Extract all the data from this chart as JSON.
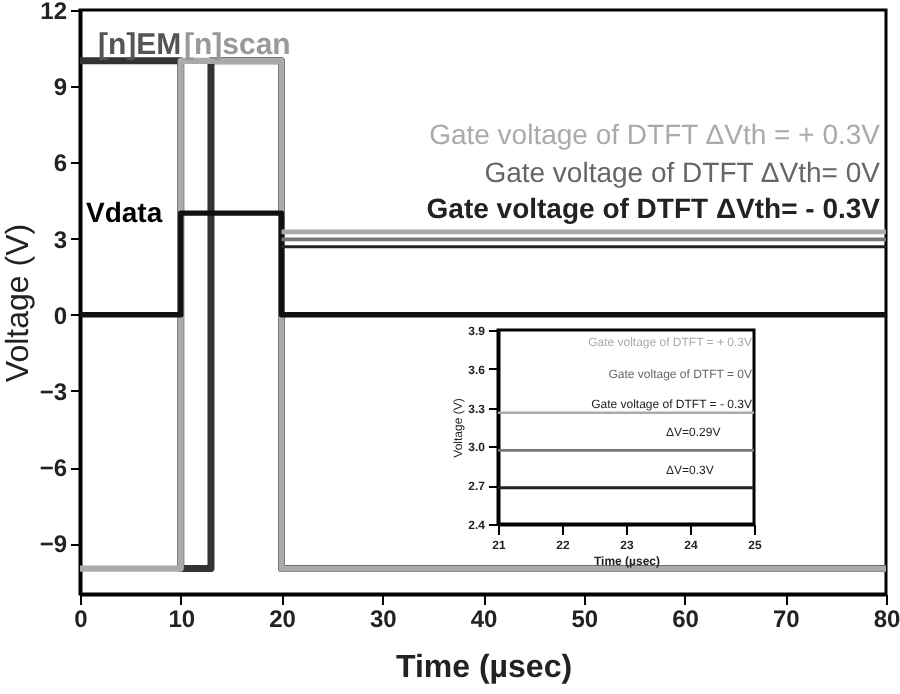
{
  "chart_data": [
    {
      "type": "line",
      "xlabel": "Time (µsec)",
      "ylabel": "Voltage (V)",
      "xlim": [
        0,
        80
      ],
      "ylim": [
        -11,
        12
      ],
      "xticks": [
        0,
        10,
        20,
        30,
        40,
        50,
        60,
        70,
        80
      ],
      "yticks": [
        -9,
        -6,
        -3,
        0,
        3,
        6,
        9,
        12
      ],
      "series": [
        {
          "name": "[n]EM",
          "color": "#333333",
          "x": [
            0,
            10,
            10,
            13,
            13,
            20,
            20,
            80
          ],
          "values": [
            10,
            10,
            -10,
            -10,
            10,
            10,
            -10,
            -10
          ]
        },
        {
          "name": "[n]scan",
          "color": "#aaaaaa",
          "x": [
            0,
            10,
            10,
            20,
            20,
            80
          ],
          "values": [
            -10,
            -10,
            10,
            10,
            -10,
            -10
          ]
        },
        {
          "name": "Vdata",
          "color": "#111111",
          "x": [
            0,
            10,
            10,
            20,
            20,
            80
          ],
          "values": [
            0,
            0,
            4,
            4,
            0,
            0
          ]
        },
        {
          "name": "Gate voltage of DTFT ΔVth = + 0.3V",
          "color": "#aaaaaa",
          "x": [
            20,
            80
          ],
          "values": [
            3.26,
            3.26
          ]
        },
        {
          "name": "Gate voltage of DTFT ΔVth= 0V",
          "color": "#777777",
          "x": [
            20,
            80
          ],
          "values": [
            2.97,
            2.97
          ]
        },
        {
          "name": "Gate voltage of DTFT ΔVth= - 0.3V",
          "color": "#222222",
          "x": [
            20,
            80
          ],
          "values": [
            2.68,
            2.68
          ]
        }
      ]
    },
    {
      "type": "line",
      "xlabel": "Time (µsec)",
      "ylabel": "Voltage (V)",
      "xlim": [
        21,
        25
      ],
      "ylim": [
        2.4,
        3.9
      ],
      "xticks": [
        21,
        22,
        23,
        24,
        25
      ],
      "yticks": [
        2.4,
        2.7,
        {
          "value": 3,
          "label": "3.0"
        },
        3.3,
        3.6,
        3.9
      ],
      "annotations": [
        "ΔV=0.29V",
        "ΔV=0.3V"
      ],
      "series": [
        {
          "name": "Gate voltage of DTFT = + 0.3V",
          "color": "#aaaaaa",
          "x": [
            21,
            25
          ],
          "values": [
            3.26,
            3.26
          ]
        },
        {
          "name": "Gate voltage of DTFT = 0V",
          "color": "#777777",
          "x": [
            21,
            25
          ],
          "values": [
            2.97,
            2.97
          ]
        },
        {
          "name": "Gate voltage of DTFT = - 0.3V",
          "color": "#222222",
          "x": [
            21,
            25
          ],
          "values": [
            2.68,
            2.68
          ]
        }
      ]
    }
  ]
}
